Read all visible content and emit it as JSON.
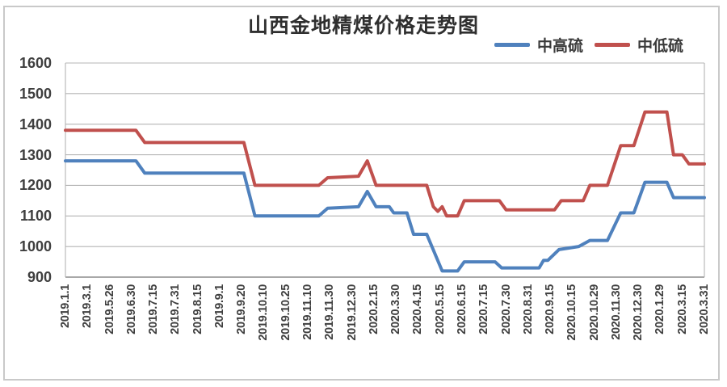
{
  "chart_data": {
    "type": "line",
    "title": "山西金地精煤价格走势图",
    "xlabel": "",
    "ylabel": "",
    "ylim": [
      900,
      1600
    ],
    "ytick_step": 100,
    "y_ticks": [
      1600,
      1500,
      1400,
      1300,
      1200,
      1100,
      1000,
      900
    ],
    "grid": true,
    "legend_position": "top-right",
    "categories": [
      "2019.1.1",
      "2019.3.1",
      "2019.5.26",
      "2019.6.30",
      "2019.7.15",
      "2019.7.31",
      "2019.8.15",
      "2019.9.1",
      "2019.9.20",
      "2019.10.10",
      "2019.10.25",
      "2019.11.10",
      "2019.11.30",
      "2019.12.30",
      "2020.2.15",
      "2020.3.30",
      "2020.4.15",
      "2020.5.15",
      "2020.6.15",
      "2020.7.15",
      "2020.7.30",
      "2020.8.31",
      "2020.9.15",
      "2020.10.15",
      "2020.10.29",
      "2020.11.30",
      "2020.12.30",
      "2020.1.29",
      "2020.3.15",
      "2020.3.31"
    ],
    "series": [
      {
        "name": "中高硫",
        "color": "#4F81BD",
        "values": [
          1280,
          1280,
          1280,
          1280,
          1240,
          1240,
          1240,
          1240,
          1240,
          1100,
          1100,
          1100,
          1125,
          1130,
          1180,
          1130,
          1110,
          1040,
          920,
          950,
          950,
          930,
          930,
          990,
          1000,
          1020,
          1110,
          1210,
          1210,
          1160
        ],
        "detail_points": [
          [
            0,
            1280
          ],
          [
            3.2,
            1280
          ],
          [
            3.6,
            1240
          ],
          [
            8.1,
            1240
          ],
          [
            8.6,
            1100
          ],
          [
            11.5,
            1100
          ],
          [
            11.9,
            1125
          ],
          [
            13.3,
            1130
          ],
          [
            13.7,
            1180
          ],
          [
            14.1,
            1130
          ],
          [
            14.7,
            1130
          ],
          [
            14.9,
            1110
          ],
          [
            15.5,
            1110
          ],
          [
            15.8,
            1040
          ],
          [
            16.4,
            1040
          ],
          [
            17.1,
            920
          ],
          [
            17.8,
            920
          ],
          [
            18.1,
            950
          ],
          [
            19.5,
            950
          ],
          [
            19.8,
            930
          ],
          [
            21.5,
            930
          ],
          [
            21.7,
            955
          ],
          [
            21.9,
            955
          ],
          [
            22.4,
            990
          ],
          [
            23.3,
            1000
          ],
          [
            23.8,
            1020
          ],
          [
            24.6,
            1020
          ],
          [
            25.2,
            1110
          ],
          [
            25.8,
            1110
          ],
          [
            26.3,
            1210
          ],
          [
            27.3,
            1210
          ],
          [
            27.6,
            1160
          ],
          [
            29,
            1160
          ]
        ]
      },
      {
        "name": "中低硫",
        "color": "#C0504D",
        "values": [
          1380,
          1380,
          1380,
          1380,
          1340,
          1340,
          1340,
          1340,
          1340,
          1200,
          1200,
          1200,
          1225,
          1230,
          1280,
          1200,
          1200,
          1130,
          1100,
          1150,
          1150,
          1120,
          1120,
          1150,
          1150,
          1200,
          1330,
          1440,
          1300,
          1270
        ],
        "detail_points": [
          [
            0,
            1380
          ],
          [
            3.2,
            1380
          ],
          [
            3.6,
            1340
          ],
          [
            8.1,
            1340
          ],
          [
            8.6,
            1200
          ],
          [
            11.5,
            1200
          ],
          [
            11.9,
            1225
          ],
          [
            13.3,
            1230
          ],
          [
            13.7,
            1280
          ],
          [
            14.1,
            1200
          ],
          [
            16.4,
            1200
          ],
          [
            16.7,
            1130
          ],
          [
            16.9,
            1115
          ],
          [
            17.1,
            1130
          ],
          [
            17.3,
            1100
          ],
          [
            17.8,
            1100
          ],
          [
            18.1,
            1150
          ],
          [
            19.7,
            1150
          ],
          [
            20.0,
            1120
          ],
          [
            22.2,
            1120
          ],
          [
            22.5,
            1150
          ],
          [
            23.5,
            1150
          ],
          [
            23.8,
            1200
          ],
          [
            24.6,
            1200
          ],
          [
            25.2,
            1330
          ],
          [
            25.8,
            1330
          ],
          [
            26.3,
            1440
          ],
          [
            27.3,
            1440
          ],
          [
            27.6,
            1300
          ],
          [
            28.0,
            1300
          ],
          [
            28.3,
            1270
          ],
          [
            29,
            1270
          ]
        ]
      }
    ],
    "style": {
      "gridline_color": "#b4b4b4",
      "axis_color": "#8c8c8c",
      "text_color": "#3f3f3f",
      "frame_color": "#c9c9c9"
    }
  }
}
